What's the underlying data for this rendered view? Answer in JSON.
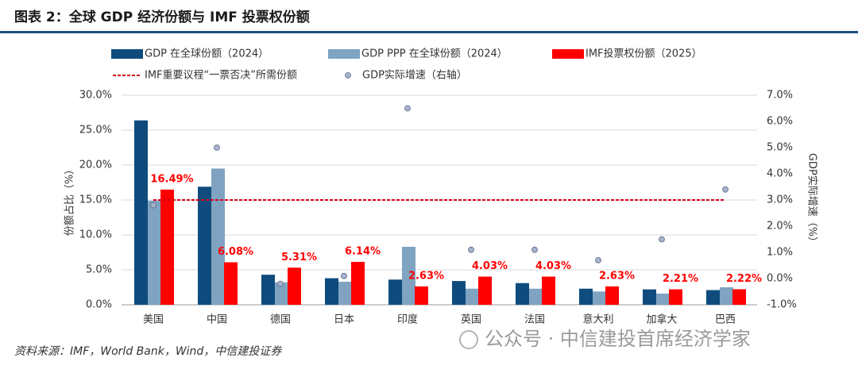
{
  "title": "图表 2：全球 GDP 经济份额与 IMF 投票权份额",
  "source": "资料来源：IMF，World Bank，Wind，中信建投证券",
  "watermark": "公众号 · 中信建投首席经济学家",
  "chart_data": {
    "type": "bar",
    "y_label": "份额占比（%）",
    "y2_label": "GDP实际增速（%）",
    "categories": [
      "美国",
      "中国",
      "德国",
      "日本",
      "印度",
      "英国",
      "法国",
      "意大利",
      "加拿大",
      "巴西"
    ],
    "ylim": [
      0,
      30
    ],
    "yticks": [
      {
        "value": 0,
        "label": "0.0%"
      },
      {
        "value": 5,
        "label": "5.0%"
      },
      {
        "value": 10,
        "label": "10.0%"
      },
      {
        "value": 15,
        "label": "15.0%"
      },
      {
        "value": 20,
        "label": "20.0%"
      },
      {
        "value": 25,
        "label": "25.0%"
      },
      {
        "value": 30,
        "label": "30.0%"
      }
    ],
    "y2lim": [
      -1,
      7
    ],
    "y2ticks": [
      {
        "value": -1,
        "label": "-1.0%"
      },
      {
        "value": 0,
        "label": "0.0%"
      },
      {
        "value": 1,
        "label": "1.0%"
      },
      {
        "value": 2,
        "label": "2.0%"
      },
      {
        "value": 3,
        "label": "3.0%"
      },
      {
        "value": 4,
        "label": "4.0%"
      },
      {
        "value": 5,
        "label": "5.0%"
      },
      {
        "value": 6,
        "label": "6.0%"
      },
      {
        "value": 7,
        "label": "7.0%"
      }
    ],
    "grid": true,
    "series": [
      {
        "name": "GDP 在全球份额（2024）",
        "type": "bar",
        "color": "#0f4c7d",
        "values": [
          26.4,
          16.9,
          4.3,
          3.8,
          3.6,
          3.4,
          3.1,
          2.3,
          2.2,
          2.1
        ]
      },
      {
        "name": "GDP PPP 在全球份额（2024）",
        "type": "bar",
        "color": "#7fa3c1",
        "values": [
          14.9,
          19.5,
          3.2,
          3.3,
          8.3,
          2.3,
          2.3,
          1.9,
          1.6,
          2.5
        ]
      },
      {
        "name": "IMF投票权份额（2025）",
        "type": "bar",
        "color": "#ff0000",
        "values": [
          16.49,
          6.08,
          5.31,
          6.14,
          2.63,
          4.03,
          4.03,
          2.63,
          2.21,
          2.22
        ],
        "value_labels": [
          "16.49%",
          "6.08%",
          "5.31%",
          "6.14%",
          "2.63%",
          "4.03%",
          "4.03%",
          "2.63%",
          "2.21%",
          "2.22%"
        ]
      },
      {
        "name": "IMF重要议程“一票否决”所需份额",
        "type": "line",
        "dash": true,
        "color": "#d9001b",
        "values": [
          15,
          15,
          15,
          15,
          15,
          15,
          15,
          15,
          15,
          15
        ]
      },
      {
        "name": "GDP实际增速（右轴）",
        "type": "scatter",
        "axis": "y2",
        "color": "#a7b3cb",
        "values": [
          2.8,
          5.0,
          -0.2,
          0.1,
          6.5,
          1.1,
          1.1,
          0.7,
          1.5,
          3.4
        ]
      }
    ]
  }
}
